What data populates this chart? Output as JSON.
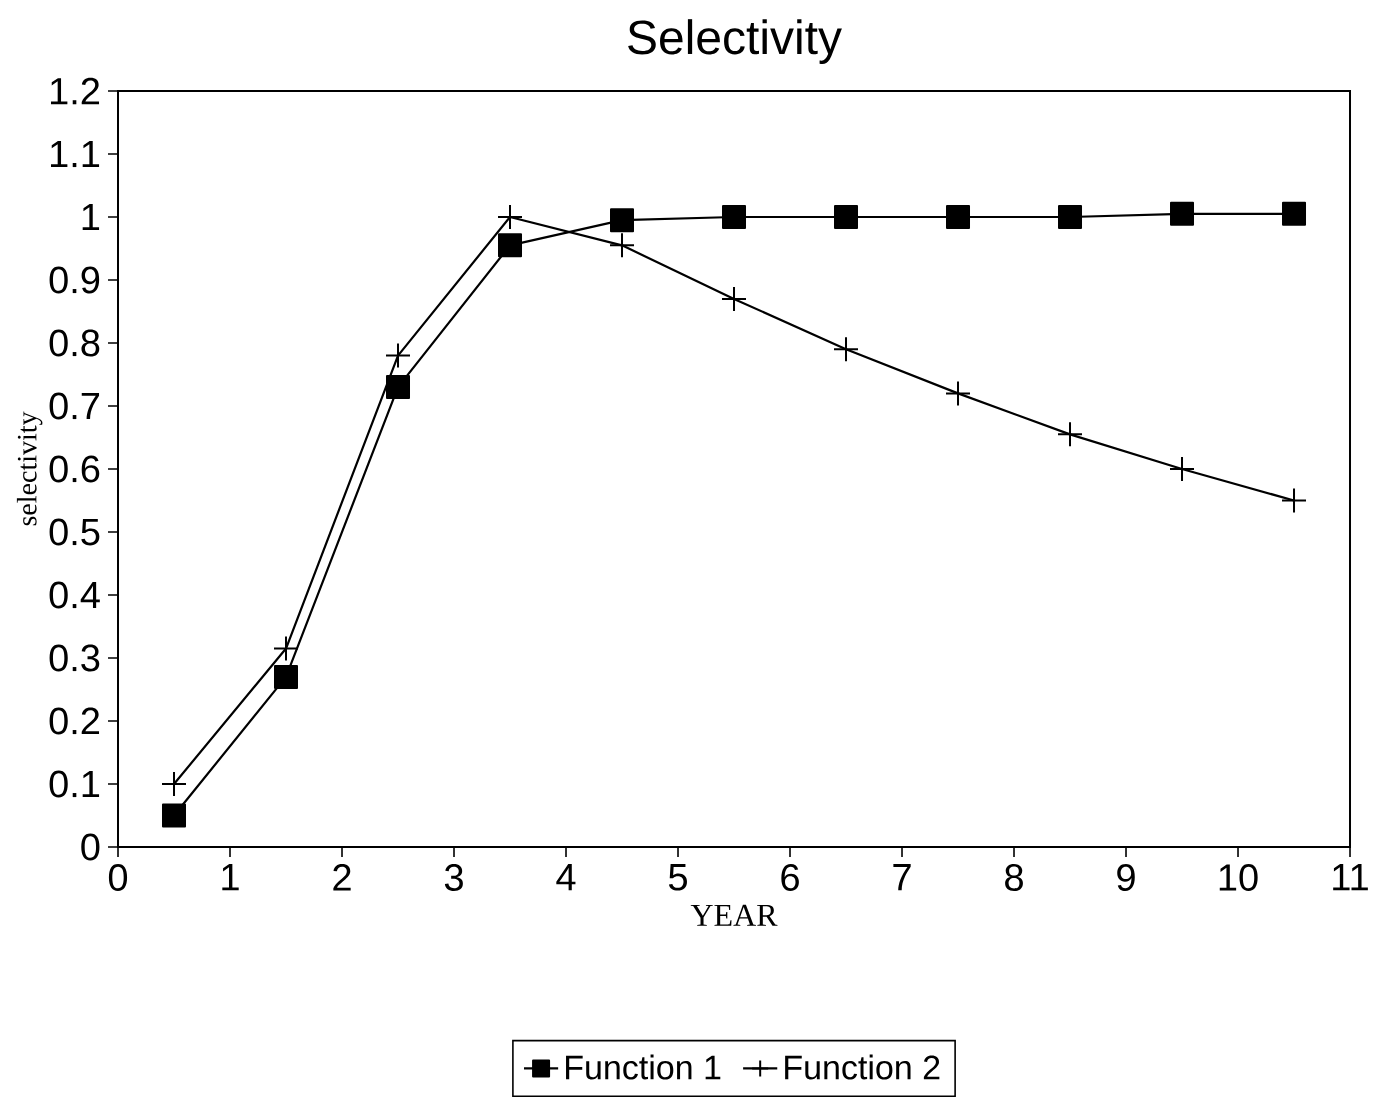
{
  "chart_data": {
    "type": "line",
    "title": "Selectivity",
    "xlabel": "YEAR",
    "ylabel": "selectivity",
    "x": [
      0.5,
      1.5,
      2.5,
      3.5,
      4.5,
      5.5,
      6.5,
      7.5,
      8.5,
      9.5,
      10.5
    ],
    "series": [
      {
        "name": "Function 1",
        "color": "#000000",
        "marker": "square",
        "values": [
          0.05,
          0.27,
          0.73,
          0.955,
          0.995,
          1.0,
          1.0,
          1.0,
          1.0,
          1.005,
          1.005
        ]
      },
      {
        "name": "Function 2",
        "color": "#000000",
        "marker": "cross",
        "values": [
          0.1,
          0.315,
          0.78,
          1.0,
          0.955,
          0.87,
          0.79,
          0.72,
          0.655,
          0.6,
          0.55
        ]
      }
    ],
    "xlim": [
      0,
      11
    ],
    "ylim": [
      0,
      1.2
    ],
    "xticks": [
      0,
      1,
      2,
      3,
      4,
      5,
      6,
      7,
      8,
      9,
      10,
      11
    ],
    "yticks": [
      0,
      0.1,
      0.2,
      0.3,
      0.4,
      0.5,
      0.6,
      0.7,
      0.8,
      0.9,
      1,
      1.1,
      1.2
    ],
    "legend": "bottom",
    "line_style": "solid"
  }
}
